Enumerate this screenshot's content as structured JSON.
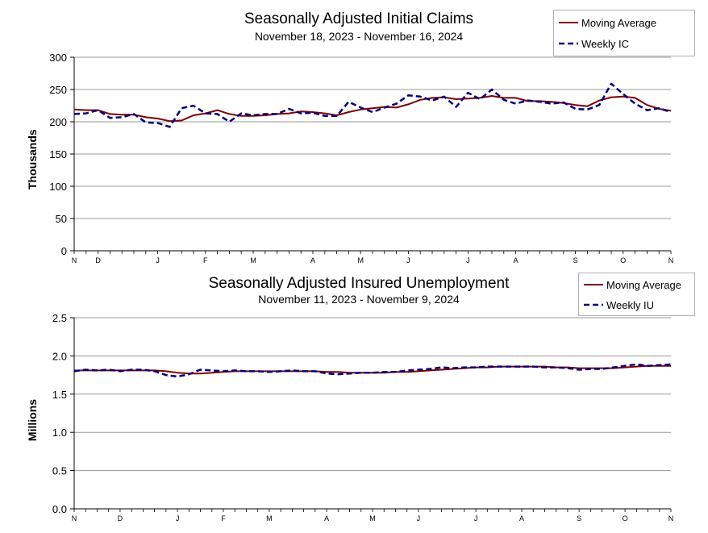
{
  "colors": {
    "moving_average": "#7f0000",
    "weekly": "#000080",
    "grid": "#9a9a9a",
    "axis": "#000000"
  },
  "chart_data": [
    {
      "type": "line",
      "title": "Seasonally Adjusted Initial Claims",
      "subtitle": "November 18, 2023 - November 16, 2024",
      "ylabel": "Thousands",
      "ylim": [
        0,
        300
      ],
      "yticks": [
        0,
        50,
        100,
        150,
        200,
        250,
        300
      ],
      "ytick_labels": [
        "0",
        "50",
        "100",
        "150",
        "200",
        "250",
        "300"
      ],
      "grid": true,
      "legend": "top-right",
      "month_labels": [
        "N",
        "D",
        "J",
        "F",
        "M",
        "A",
        "M",
        "J",
        "J",
        "A",
        "S",
        "O",
        "N"
      ],
      "month_label_index": [
        0,
        2,
        7,
        11,
        15,
        20,
        24,
        28,
        33,
        37,
        42,
        46,
        50
      ],
      "series": [
        {
          "name": "Moving Average",
          "values": [
            219,
            218,
            218,
            212,
            211,
            211,
            207,
            205,
            201,
            202,
            210,
            213,
            218,
            212,
            209,
            209,
            210,
            212,
            213,
            216,
            215,
            213,
            210,
            215,
            219,
            221,
            223,
            222,
            227,
            234,
            237,
            238,
            235,
            236,
            237,
            240,
            237,
            237,
            232,
            232,
            231,
            229,
            226,
            224,
            233,
            238,
            239,
            237,
            226,
            220,
            217
          ]
        },
        {
          "name": "Weekly IC",
          "values": [
            212,
            213,
            218,
            206,
            207,
            212,
            199,
            198,
            192,
            221,
            225,
            213,
            212,
            200,
            213,
            210,
            212,
            212,
            220,
            213,
            214,
            209,
            209,
            231,
            222,
            215,
            222,
            228,
            241,
            239,
            233,
            239,
            223,
            245,
            235,
            250,
            234,
            228,
            233,
            231,
            228,
            230,
            220,
            219,
            226,
            259,
            243,
            228,
            218,
            221,
            215
          ]
        }
      ]
    },
    {
      "type": "line",
      "title": "Seasonally Adjusted Insured Unemployment",
      "subtitle": "November 11, 2023 - November 9, 2024",
      "ylabel": "Millions",
      "ylim": [
        0,
        2.5
      ],
      "yticks": [
        0,
        0.5,
        1.0,
        1.5,
        2.0,
        2.5
      ],
      "ytick_labels": [
        "0.0",
        "0.5",
        "1.0",
        "1.5",
        "2.0",
        "2.5"
      ],
      "grid": true,
      "legend": "top-right",
      "month_labels": [
        "N",
        "D",
        "J",
        "F",
        "M",
        "A",
        "M",
        "J",
        "J",
        "A",
        "S",
        "O",
        "N"
      ],
      "month_label_index": [
        0,
        4,
        9,
        13,
        17,
        22,
        26,
        30,
        35,
        39,
        44,
        48,
        52
      ],
      "series": [
        {
          "name": "Moving Average",
          "values": [
            1.81,
            1.81,
            1.81,
            1.81,
            1.81,
            1.81,
            1.81,
            1.81,
            1.8,
            1.78,
            1.77,
            1.77,
            1.78,
            1.79,
            1.8,
            1.8,
            1.8,
            1.8,
            1.8,
            1.8,
            1.8,
            1.8,
            1.79,
            1.79,
            1.78,
            1.78,
            1.78,
            1.78,
            1.79,
            1.79,
            1.8,
            1.81,
            1.82,
            1.83,
            1.84,
            1.85,
            1.85,
            1.86,
            1.86,
            1.86,
            1.86,
            1.86,
            1.85,
            1.85,
            1.84,
            1.84,
            1.84,
            1.84,
            1.85,
            1.86,
            1.87,
            1.87,
            1.87
          ]
        },
        {
          "name": "Weekly IU",
          "values": [
            1.8,
            1.82,
            1.81,
            1.82,
            1.8,
            1.82,
            1.82,
            1.8,
            1.75,
            1.73,
            1.76,
            1.82,
            1.81,
            1.8,
            1.81,
            1.8,
            1.8,
            1.79,
            1.8,
            1.81,
            1.8,
            1.8,
            1.77,
            1.76,
            1.77,
            1.78,
            1.78,
            1.79,
            1.79,
            1.81,
            1.82,
            1.83,
            1.85,
            1.84,
            1.85,
            1.85,
            1.86,
            1.86,
            1.86,
            1.86,
            1.86,
            1.85,
            1.85,
            1.84,
            1.82,
            1.83,
            1.83,
            1.85,
            1.87,
            1.89,
            1.87,
            1.88,
            1.89
          ]
        }
      ]
    }
  ]
}
